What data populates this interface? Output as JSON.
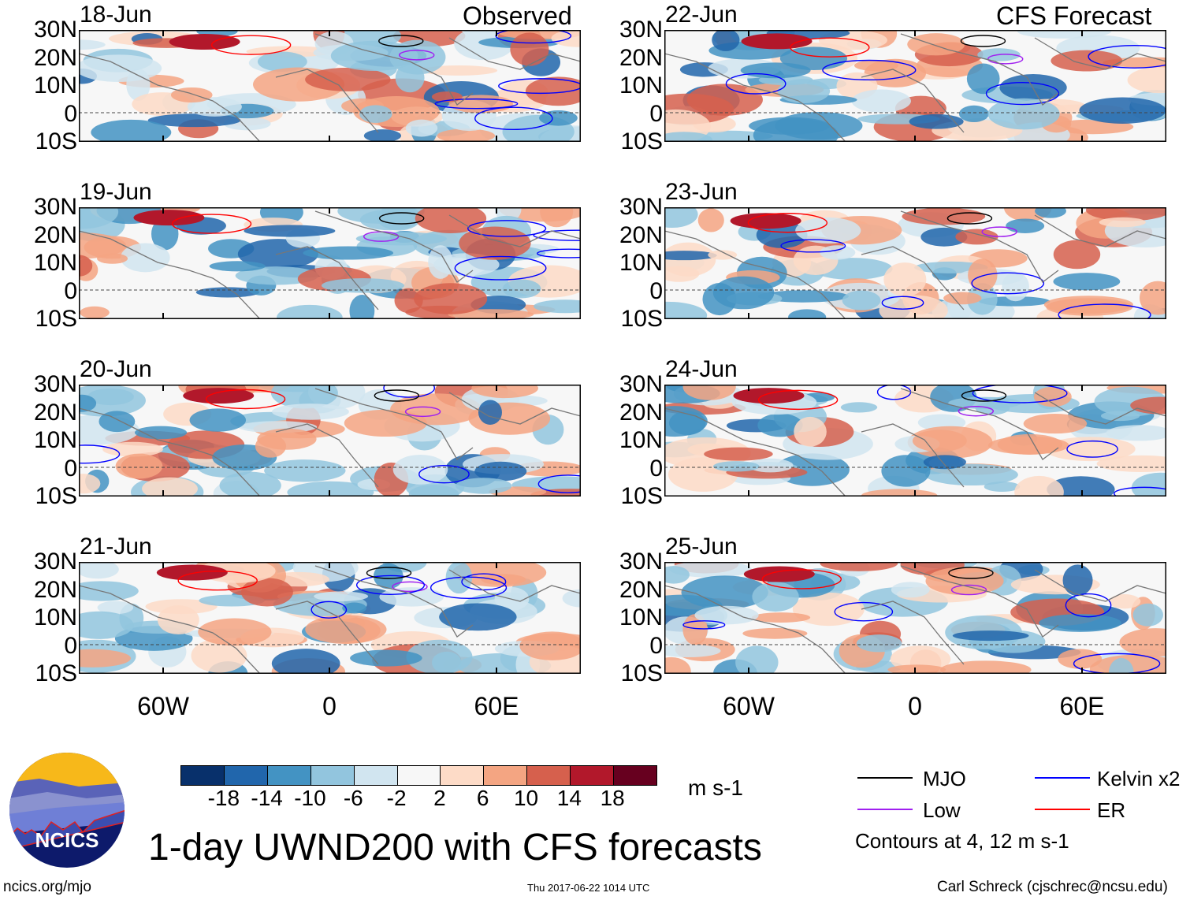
{
  "title": "1-day UWND200 with CFS forecasts",
  "columns": {
    "left_label": "Observed",
    "right_label": "CFS Forecast"
  },
  "panels_left": [
    {
      "date": "18-Jun"
    },
    {
      "date": "19-Jun"
    },
    {
      "date": "20-Jun"
    },
    {
      "date": "21-Jun"
    }
  ],
  "panels_right": [
    {
      "date": "22-Jun"
    },
    {
      "date": "23-Jun"
    },
    {
      "date": "24-Jun"
    },
    {
      "date": "25-Jun"
    }
  ],
  "lat_labels": [
    "30N",
    "20N",
    "10N",
    "0",
    "10S"
  ],
  "lon_labels": [
    "60W",
    "0",
    "60E"
  ],
  "colorbar": {
    "ticks": [
      "-18",
      "-14",
      "-10",
      "-6",
      "-2",
      "2",
      "6",
      "10",
      "14",
      "18"
    ],
    "colors": [
      "#08306b",
      "#2166ac",
      "#4393c3",
      "#92c5de",
      "#d1e5f0",
      "#f7f7f7",
      "#fddbc7",
      "#f4a582",
      "#d6604d",
      "#b2182b",
      "#67001f"
    ],
    "units": "m s-1"
  },
  "legend": {
    "items": [
      {
        "label": "MJO",
        "color": "#000000"
      },
      {
        "label": "Low",
        "color": "#a020f0"
      },
      {
        "label": "Kelvin x2",
        "color": "#0000ff"
      },
      {
        "label": "ER",
        "color": "#ff0000"
      }
    ],
    "note": "Contours at 4, 12 m s-1"
  },
  "logo": {
    "text": "NCICS"
  },
  "footer": {
    "url": "ncics.org/mjo",
    "timestamp": "Thu 2017-06-22 1014 UTC",
    "credit": "Carl Schreck (cjschrec@ncsu.edu)"
  }
}
